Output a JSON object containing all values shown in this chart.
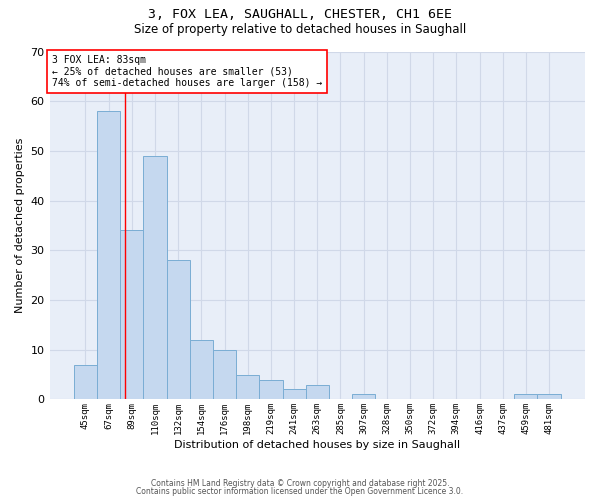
{
  "title_line1": "3, FOX LEA, SAUGHALL, CHESTER, CH1 6EE",
  "title_line2": "Size of property relative to detached houses in Saughall",
  "xlabel": "Distribution of detached houses by size in Saughall",
  "ylabel": "Number of detached properties",
  "categories": [
    "45sqm",
    "67sqm",
    "89sqm",
    "110sqm",
    "132sqm",
    "154sqm",
    "176sqm",
    "198sqm",
    "219sqm",
    "241sqm",
    "263sqm",
    "285sqm",
    "307sqm",
    "328sqm",
    "350sqm",
    "372sqm",
    "394sqm",
    "416sqm",
    "437sqm",
    "459sqm",
    "481sqm"
  ],
  "values": [
    7,
    58,
    34,
    49,
    28,
    12,
    10,
    5,
    4,
    2,
    3,
    0,
    1,
    0,
    0,
    0,
    0,
    0,
    0,
    1,
    1
  ],
  "bar_color": "#c5d8ef",
  "bar_edge_color": "#7aadd4",
  "grid_color": "#d0d8e8",
  "background_color": "#ffffff",
  "plot_bg_color": "#e8eef8",
  "red_line_x": 1.72,
  "annotation_text": "3 FOX LEA: 83sqm\n← 25% of detached houses are smaller (53)\n74% of semi-detached houses are larger (158) →",
  "annotation_box_color": "white",
  "annotation_box_edge": "red",
  "ylim": [
    0,
    70
  ],
  "yticks": [
    0,
    10,
    20,
    30,
    40,
    50,
    60,
    70
  ],
  "footnote1": "Contains HM Land Registry data © Crown copyright and database right 2025.",
  "footnote2": "Contains public sector information licensed under the Open Government Licence 3.0."
}
